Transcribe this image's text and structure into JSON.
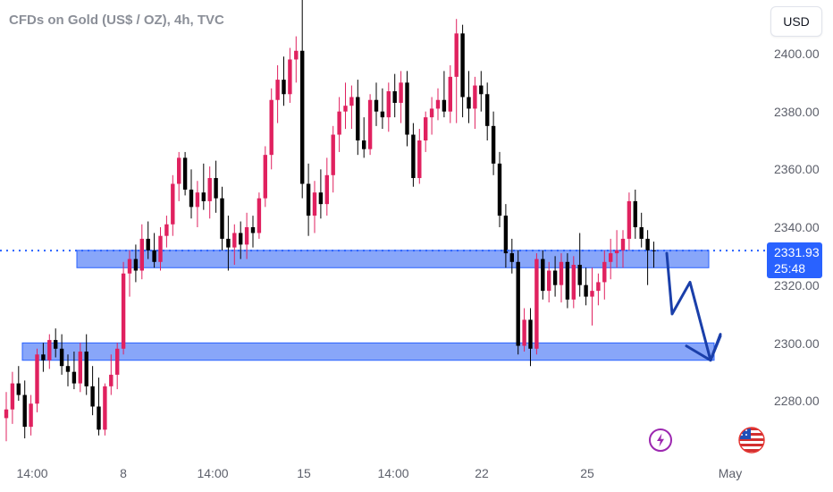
{
  "title": "CFDs on Gold (US$ / OZ), 4h, TVC",
  "currency_button": "USD",
  "price_axis": {
    "labels": [
      "2400.00",
      "2380.00",
      "2360.00",
      "2340.00",
      "2320.00",
      "2300.00",
      "2280.00"
    ]
  },
  "time_axis": {
    "labels": [
      "14:00",
      "8",
      "14:00",
      "15",
      "14:00",
      "22",
      "25",
      "May"
    ]
  },
  "last_price": {
    "value": "2331.93",
    "countdown": "25:48"
  },
  "colors": {
    "up": "#e0215f",
    "down": "#000000",
    "zone_fill": "#7b9cf8",
    "zone_border": "#2962ff",
    "arrow": "#1a3faa",
    "price_line": "#2962ff",
    "tag": "#2962ff"
  },
  "icons": {
    "lightning": "lightning-icon",
    "us_flag": "us-flag-icon"
  },
  "chart_data": {
    "type": "candlestick",
    "title": "CFDs on Gold (US$ / OZ), 4h, TVC",
    "ylim": [
      2265,
      2415
    ],
    "y_ticks": [
      2280,
      2300,
      2320,
      2340,
      2360,
      2380,
      2400
    ],
    "x_tick_labels": [
      "14:00",
      "8",
      "14:00",
      "15",
      "14:00",
      "22",
      "25",
      "May"
    ],
    "last_price": 2331.93,
    "support_zones": [
      {
        "low": 2326,
        "high": 2332
      },
      {
        "low": 2294,
        "high": 2300
      }
    ],
    "projected_path": [
      2331,
      2310,
      2321,
      2294,
      2303
    ],
    "candles": [
      {
        "o": 2274,
        "h": 2283,
        "l": 2266,
        "c": 2277
      },
      {
        "o": 2277,
        "h": 2290,
        "l": 2272,
        "c": 2286
      },
      {
        "o": 2286,
        "h": 2292,
        "l": 2280,
        "c": 2282
      },
      {
        "o": 2282,
        "h": 2287,
        "l": 2267,
        "c": 2271
      },
      {
        "o": 2271,
        "h": 2282,
        "l": 2268,
        "c": 2279
      },
      {
        "o": 2279,
        "h": 2298,
        "l": 2276,
        "c": 2296
      },
      {
        "o": 2296,
        "h": 2300,
        "l": 2290,
        "c": 2294
      },
      {
        "o": 2294,
        "h": 2303,
        "l": 2291,
        "c": 2301
      },
      {
        "o": 2301,
        "h": 2305,
        "l": 2295,
        "c": 2298
      },
      {
        "o": 2298,
        "h": 2303,
        "l": 2289,
        "c": 2292
      },
      {
        "o": 2292,
        "h": 2296,
        "l": 2285,
        "c": 2290
      },
      {
        "o": 2290,
        "h": 2297,
        "l": 2284,
        "c": 2286
      },
      {
        "o": 2286,
        "h": 2300,
        "l": 2283,
        "c": 2297
      },
      {
        "o": 2297,
        "h": 2303,
        "l": 2282,
        "c": 2285
      },
      {
        "o": 2285,
        "h": 2292,
        "l": 2275,
        "c": 2278
      },
      {
        "o": 2278,
        "h": 2288,
        "l": 2268,
        "c": 2270
      },
      {
        "o": 2270,
        "h": 2286,
        "l": 2268,
        "c": 2285
      },
      {
        "o": 2285,
        "h": 2296,
        "l": 2282,
        "c": 2289
      },
      {
        "o": 2289,
        "h": 2300,
        "l": 2284,
        "c": 2298
      },
      {
        "o": 2298,
        "h": 2328,
        "l": 2296,
        "c": 2324
      },
      {
        "o": 2324,
        "h": 2332,
        "l": 2316,
        "c": 2329
      },
      {
        "o": 2329,
        "h": 2334,
        "l": 2321,
        "c": 2325
      },
      {
        "o": 2325,
        "h": 2341,
        "l": 2322,
        "c": 2336
      },
      {
        "o": 2336,
        "h": 2342,
        "l": 2329,
        "c": 2332
      },
      {
        "o": 2332,
        "h": 2338,
        "l": 2326,
        "c": 2328
      },
      {
        "o": 2328,
        "h": 2340,
        "l": 2325,
        "c": 2337
      },
      {
        "o": 2337,
        "h": 2344,
        "l": 2333,
        "c": 2341
      },
      {
        "o": 2341,
        "h": 2358,
        "l": 2337,
        "c": 2355
      },
      {
        "o": 2355,
        "h": 2366,
        "l": 2349,
        "c": 2364
      },
      {
        "o": 2364,
        "h": 2366,
        "l": 2351,
        "c": 2353
      },
      {
        "o": 2353,
        "h": 2360,
        "l": 2343,
        "c": 2347
      },
      {
        "o": 2347,
        "h": 2356,
        "l": 2340,
        "c": 2352
      },
      {
        "o": 2352,
        "h": 2362,
        "l": 2346,
        "c": 2349
      },
      {
        "o": 2349,
        "h": 2361,
        "l": 2343,
        "c": 2357
      },
      {
        "o": 2357,
        "h": 2363,
        "l": 2345,
        "c": 2350
      },
      {
        "o": 2350,
        "h": 2354,
        "l": 2332,
        "c": 2336
      },
      {
        "o": 2336,
        "h": 2344,
        "l": 2325,
        "c": 2333
      },
      {
        "o": 2333,
        "h": 2341,
        "l": 2327,
        "c": 2338
      },
      {
        "o": 2338,
        "h": 2342,
        "l": 2329,
        "c": 2334
      },
      {
        "o": 2334,
        "h": 2345,
        "l": 2329,
        "c": 2340
      },
      {
        "o": 2340,
        "h": 2344,
        "l": 2333,
        "c": 2338
      },
      {
        "o": 2338,
        "h": 2352,
        "l": 2336,
        "c": 2350
      },
      {
        "o": 2350,
        "h": 2368,
        "l": 2347,
        "c": 2365
      },
      {
        "o": 2365,
        "h": 2388,
        "l": 2360,
        "c": 2384
      },
      {
        "o": 2384,
        "h": 2396,
        "l": 2376,
        "c": 2391
      },
      {
        "o": 2391,
        "h": 2399,
        "l": 2382,
        "c": 2386
      },
      {
        "o": 2386,
        "h": 2402,
        "l": 2383,
        "c": 2398
      },
      {
        "o": 2398,
        "h": 2406,
        "l": 2390,
        "c": 2401
      },
      {
        "o": 2401,
        "h": 2420,
        "l": 2350,
        "c": 2355
      },
      {
        "o": 2355,
        "h": 2362,
        "l": 2337,
        "c": 2344
      },
      {
        "o": 2344,
        "h": 2356,
        "l": 2338,
        "c": 2352
      },
      {
        "o": 2352,
        "h": 2360,
        "l": 2343,
        "c": 2348
      },
      {
        "o": 2348,
        "h": 2364,
        "l": 2344,
        "c": 2358
      },
      {
        "o": 2358,
        "h": 2375,
        "l": 2352,
        "c": 2372
      },
      {
        "o": 2372,
        "h": 2385,
        "l": 2366,
        "c": 2380
      },
      {
        "o": 2380,
        "h": 2390,
        "l": 2374,
        "c": 2382
      },
      {
        "o": 2382,
        "h": 2389,
        "l": 2374,
        "c": 2385
      },
      {
        "o": 2385,
        "h": 2391,
        "l": 2365,
        "c": 2370
      },
      {
        "o": 2370,
        "h": 2378,
        "l": 2364,
        "c": 2367
      },
      {
        "o": 2367,
        "h": 2386,
        "l": 2365,
        "c": 2384
      },
      {
        "o": 2384,
        "h": 2390,
        "l": 2375,
        "c": 2380
      },
      {
        "o": 2380,
        "h": 2388,
        "l": 2374,
        "c": 2378
      },
      {
        "o": 2378,
        "h": 2390,
        "l": 2373,
        "c": 2387
      },
      {
        "o": 2387,
        "h": 2393,
        "l": 2378,
        "c": 2383
      },
      {
        "o": 2383,
        "h": 2394,
        "l": 2376,
        "c": 2390
      },
      {
        "o": 2390,
        "h": 2394,
        "l": 2368,
        "c": 2372
      },
      {
        "o": 2372,
        "h": 2376,
        "l": 2354,
        "c": 2357
      },
      {
        "o": 2357,
        "h": 2374,
        "l": 2355,
        "c": 2370
      },
      {
        "o": 2370,
        "h": 2380,
        "l": 2366,
        "c": 2378
      },
      {
        "o": 2378,
        "h": 2385,
        "l": 2372,
        "c": 2381
      },
      {
        "o": 2381,
        "h": 2388,
        "l": 2377,
        "c": 2384
      },
      {
        "o": 2384,
        "h": 2394,
        "l": 2378,
        "c": 2380
      },
      {
        "o": 2380,
        "h": 2396,
        "l": 2376,
        "c": 2392
      },
      {
        "o": 2392,
        "h": 2412,
        "l": 2376,
        "c": 2407
      },
      {
        "o": 2407,
        "h": 2410,
        "l": 2378,
        "c": 2385
      },
      {
        "o": 2385,
        "h": 2394,
        "l": 2376,
        "c": 2381
      },
      {
        "o": 2381,
        "h": 2392,
        "l": 2374,
        "c": 2389
      },
      {
        "o": 2389,
        "h": 2394,
        "l": 2380,
        "c": 2386
      },
      {
        "o": 2386,
        "h": 2390,
        "l": 2370,
        "c": 2375
      },
      {
        "o": 2375,
        "h": 2380,
        "l": 2358,
        "c": 2362
      },
      {
        "o": 2362,
        "h": 2366,
        "l": 2340,
        "c": 2344
      },
      {
        "o": 2344,
        "h": 2348,
        "l": 2326,
        "c": 2331
      },
      {
        "o": 2331,
        "h": 2336,
        "l": 2324,
        "c": 2328
      },
      {
        "o": 2328,
        "h": 2332,
        "l": 2296,
        "c": 2299
      },
      {
        "o": 2299,
        "h": 2312,
        "l": 2297,
        "c": 2308
      },
      {
        "o": 2308,
        "h": 2312,
        "l": 2292,
        "c": 2298
      },
      {
        "o": 2298,
        "h": 2331,
        "l": 2296,
        "c": 2329
      },
      {
        "o": 2329,
        "h": 2332,
        "l": 2315,
        "c": 2318
      },
      {
        "o": 2318,
        "h": 2328,
        "l": 2314,
        "c": 2325
      },
      {
        "o": 2325,
        "h": 2330,
        "l": 2316,
        "c": 2320
      },
      {
        "o": 2320,
        "h": 2331,
        "l": 2314,
        "c": 2328
      },
      {
        "o": 2328,
        "h": 2331,
        "l": 2312,
        "c": 2315
      },
      {
        "o": 2315,
        "h": 2330,
        "l": 2312,
        "c": 2327
      },
      {
        "o": 2327,
        "h": 2338,
        "l": 2316,
        "c": 2320
      },
      {
        "o": 2320,
        "h": 2326,
        "l": 2313,
        "c": 2316
      },
      {
        "o": 2316,
        "h": 2326,
        "l": 2306,
        "c": 2318
      },
      {
        "o": 2318,
        "h": 2324,
        "l": 2313,
        "c": 2321
      },
      {
        "o": 2321,
        "h": 2332,
        "l": 2315,
        "c": 2328
      },
      {
        "o": 2328,
        "h": 2336,
        "l": 2322,
        "c": 2331
      },
      {
        "o": 2331,
        "h": 2339,
        "l": 2326,
        "c": 2332
      },
      {
        "o": 2332,
        "h": 2339,
        "l": 2326,
        "c": 2336
      },
      {
        "o": 2336,
        "h": 2352,
        "l": 2332,
        "c": 2349
      },
      {
        "o": 2349,
        "h": 2353,
        "l": 2336,
        "c": 2340
      },
      {
        "o": 2340,
        "h": 2345,
        "l": 2333,
        "c": 2336
      },
      {
        "o": 2336,
        "h": 2339,
        "l": 2320,
        "c": 2332
      },
      {
        "o": 2332,
        "h": 2335,
        "l": 2326,
        "c": 2331.93
      }
    ]
  }
}
